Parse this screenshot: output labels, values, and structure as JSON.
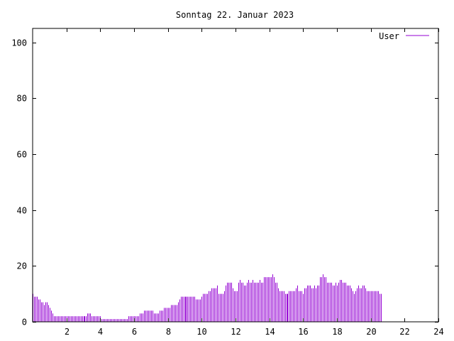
{
  "chart_data": {
    "type": "bar",
    "title": "Sonntag 22. Januar 2023",
    "xlabel": "",
    "ylabel": "",
    "xlim": [
      0,
      24
    ],
    "ylim": [
      0,
      105
    ],
    "x_ticks": [
      "2",
      "4",
      "6",
      "8",
      "10",
      "12",
      "14",
      "16",
      "18",
      "20",
      "22",
      "24"
    ],
    "y_ticks": [
      "0",
      "20",
      "40",
      "60",
      "80",
      "100"
    ],
    "legend_position": "top-right",
    "bar_color": "#9400d3",
    "series": [
      {
        "name": "User",
        "interval_minutes": 5,
        "values": [
          10,
          9,
          9,
          9,
          8,
          8,
          7,
          7,
          6,
          7,
          7,
          6,
          5,
          4,
          3,
          2,
          2,
          2,
          2,
          2,
          2,
          2,
          2,
          2,
          2,
          2,
          2,
          2,
          2,
          2,
          2,
          2,
          2,
          2,
          2,
          2,
          2,
          2,
          2,
          3,
          3,
          3,
          2,
          2,
          2,
          2,
          2,
          2,
          2,
          1,
          1,
          1,
          1,
          1,
          1,
          1,
          1,
          1,
          1,
          1,
          1,
          1,
          1,
          1,
          1,
          1,
          1,
          1,
          2,
          2,
          2,
          2,
          2,
          2,
          2,
          2,
          3,
          3,
          3,
          4,
          4,
          4,
          4,
          4,
          4,
          4,
          3,
          3,
          3,
          3,
          4,
          4,
          4,
          5,
          5,
          5,
          5,
          5,
          6,
          6,
          6,
          6,
          6,
          7,
          8,
          9,
          9,
          9,
          9,
          9,
          9,
          9,
          9,
          9,
          9,
          9,
          8,
          8,
          8,
          8,
          9,
          10,
          10,
          10,
          10,
          11,
          11,
          12,
          12,
          12,
          12,
          13,
          10,
          10,
          10,
          10,
          11,
          13,
          14,
          14,
          14,
          14,
          12,
          11,
          11,
          11,
          14,
          15,
          14,
          14,
          13,
          13,
          14,
          15,
          14,
          14,
          15,
          14,
          14,
          14,
          14,
          15,
          14,
          14,
          16,
          16,
          16,
          16,
          16,
          16,
          17,
          16,
          14,
          14,
          12,
          11,
          11,
          11,
          11,
          10,
          10,
          10,
          11,
          11,
          11,
          11,
          11,
          12,
          13,
          11,
          11,
          11,
          10,
          12,
          12,
          13,
          13,
          13,
          12,
          12,
          13,
          12,
          13,
          13,
          16,
          16,
          17,
          16,
          16,
          14,
          14,
          14,
          14,
          13,
          13,
          14,
          13,
          14,
          15,
          15,
          14,
          14,
          14,
          13,
          13,
          13,
          12,
          11,
          10,
          11,
          12,
          13,
          12,
          12,
          13,
          13,
          12,
          11,
          11,
          11,
          11,
          11,
          11,
          11,
          11,
          11,
          10,
          10
        ]
      }
    ]
  }
}
